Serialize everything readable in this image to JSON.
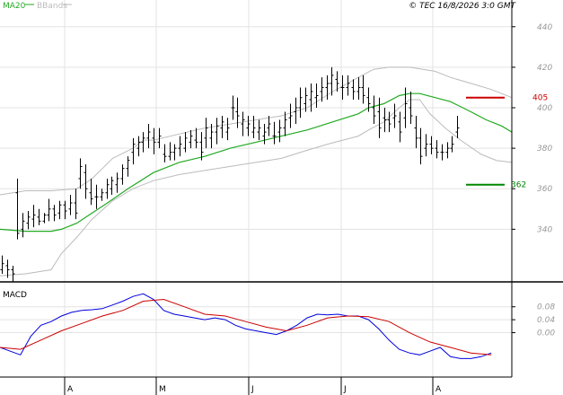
{
  "legend": {
    "ma": "MA20",
    "bbands": "BBands",
    "copyright": "© TEC 16/8/2026 3:0 GMT"
  },
  "colors": {
    "price": "#000000",
    "ma": "#22aa22",
    "bbands": "#bbbbbb",
    "macd": "#0000dd",
    "signal": "#cc0000",
    "resistance": "#cc0000",
    "support": "#008800",
    "grid": "#e3e3e3"
  },
  "chart_data": [
    {
      "type": "ohlc",
      "title": "",
      "y_ticks": [
        340,
        360,
        380,
        400,
        420,
        440
      ],
      "ylim": [
        314,
        447
      ],
      "xlim": [
        0,
        100
      ],
      "x_ticks": [
        {
          "label": "A",
          "x": 0
        },
        {
          "label": "M",
          "x": 20
        },
        {
          "label": "J",
          "x": 40
        },
        {
          "label": "J",
          "x": 60
        },
        {
          "label": "A",
          "x": 80
        }
      ],
      "levels": [
        {
          "name": "resistance",
          "value": 405,
          "label": "405"
        },
        {
          "name": "support",
          "value": 362,
          "label": "362"
        }
      ],
      "price_ohlc": [
        [
          320,
          327,
          318,
          323
        ],
        [
          322,
          325,
          316,
          320
        ],
        [
          320,
          322,
          314,
          318
        ],
        [
          358,
          365,
          335,
          338
        ],
        [
          340,
          348,
          336,
          344
        ],
        [
          343,
          349,
          340,
          346
        ],
        [
          345,
          352,
          341,
          347
        ],
        [
          346,
          350,
          342,
          344
        ],
        [
          344,
          348,
          343,
          347
        ],
        [
          347,
          355,
          344,
          350
        ],
        [
          350,
          352,
          344,
          347
        ],
        [
          348,
          354,
          345,
          352
        ],
        [
          352,
          354,
          345,
          349
        ],
        [
          350,
          357,
          347,
          353
        ],
        [
          353,
          360,
          345,
          348
        ],
        [
          365,
          375,
          360,
          371
        ],
        [
          368,
          372,
          355,
          360
        ],
        [
          358,
          365,
          352,
          355
        ],
        [
          356,
          362,
          350,
          356
        ],
        [
          356,
          360,
          354,
          358
        ],
        [
          358,
          365,
          355,
          362
        ],
        [
          360,
          366,
          357,
          364
        ],
        [
          362,
          368,
          358,
          365
        ],
        [
          365,
          372,
          362,
          370
        ],
        [
          370,
          376,
          366,
          374
        ],
        [
          378,
          385,
          372,
          382
        ],
        [
          380,
          386,
          376,
          383
        ],
        [
          383,
          388,
          378,
          385
        ],
        [
          385,
          392,
          380,
          388
        ],
        [
          385,
          390,
          377,
          383
        ],
        [
          383,
          390,
          380,
          386
        ],
        [
          377,
          382,
          373,
          376
        ],
        [
          376,
          383,
          374,
          378
        ],
        [
          378,
          382,
          374,
          380
        ],
        [
          380,
          386,
          376,
          382
        ],
        [
          380,
          388,
          378,
          385
        ],
        [
          383,
          389,
          380,
          386
        ],
        [
          384,
          390,
          380,
          383
        ],
        [
          383,
          388,
          374,
          378
        ],
        [
          385,
          395,
          380,
          390
        ],
        [
          385,
          392,
          380,
          388
        ],
        [
          388,
          395,
          382,
          391
        ],
        [
          390,
          396,
          385,
          393
        ],
        [
          388,
          395,
          384,
          390
        ],
        [
          400,
          406,
          394,
          400
        ],
        [
          398,
          405,
          390,
          396
        ],
        [
          392,
          398,
          386,
          394
        ],
        [
          390,
          396,
          386,
          392
        ],
        [
          388,
          396,
          385,
          390
        ],
        [
          388,
          394,
          384,
          390
        ],
        [
          386,
          392,
          382,
          388
        ],
        [
          390,
          396,
          386,
          392
        ],
        [
          386,
          393,
          382,
          386
        ],
        [
          388,
          394,
          383,
          390
        ],
        [
          390,
          398,
          386,
          394
        ],
        [
          395,
          402,
          390,
          396
        ],
        [
          398,
          405,
          392,
          400
        ],
        [
          400,
          410,
          395,
          405
        ],
        [
          402,
          410,
          398,
          406
        ],
        [
          404,
          412,
          398,
          408
        ],
        [
          405,
          412,
          400,
          406
        ],
        [
          408,
          415,
          403,
          410
        ],
        [
          410,
          416,
          404,
          412
        ],
        [
          412,
          420,
          406,
          416
        ],
        [
          414,
          418,
          408,
          412
        ],
        [
          410,
          416,
          404,
          410
        ],
        [
          410,
          416,
          406,
          412
        ],
        [
          410,
          414,
          404,
          408
        ],
        [
          408,
          415,
          404,
          410
        ],
        [
          410,
          416,
          402,
          406
        ],
        [
          405,
          410,
          398,
          402
        ],
        [
          400,
          406,
          392,
          396
        ],
        [
          398,
          405,
          385,
          390
        ],
        [
          395,
          400,
          388,
          394
        ],
        [
          394,
          398,
          388,
          392
        ],
        [
          395,
          402,
          390,
          396
        ],
        [
          393,
          398,
          383,
          388
        ],
        [
          395,
          410,
          390,
          402
        ],
        [
          400,
          408,
          392,
          396
        ],
        [
          390,
          396,
          380,
          385
        ],
        [
          385,
          390,
          372,
          376
        ],
        [
          380,
          387,
          376,
          382
        ],
        [
          382,
          386,
          377,
          380
        ],
        [
          380,
          384,
          375,
          378
        ],
        [
          378,
          382,
          374,
          378
        ],
        [
          378,
          383,
          375,
          380
        ],
        [
          380,
          386,
          378,
          382
        ],
        [
          388,
          396,
          385,
          390
        ]
      ],
      "ma20": [
        [
          0,
          340
        ],
        [
          5,
          339
        ],
        [
          10,
          339
        ],
        [
          12,
          340
        ],
        [
          15,
          343
        ],
        [
          18,
          348
        ],
        [
          21,
          353
        ],
        [
          25,
          360
        ],
        [
          30,
          368
        ],
        [
          35,
          373
        ],
        [
          40,
          376
        ],
        [
          45,
          380
        ],
        [
          50,
          383
        ],
        [
          55,
          386
        ],
        [
          60,
          389
        ],
        [
          65,
          393
        ],
        [
          70,
          397
        ],
        [
          72,
          400
        ],
        [
          75,
          402
        ],
        [
          78,
          406
        ],
        [
          80,
          407
        ],
        [
          82,
          407
        ],
        [
          85,
          405
        ],
        [
          88,
          403
        ],
        [
          92,
          398
        ],
        [
          95,
          394
        ],
        [
          98,
          391
        ],
        [
          100,
          388
        ]
      ],
      "bb_upper": [
        [
          0,
          357
        ],
        [
          5,
          359
        ],
        [
          10,
          359
        ],
        [
          15,
          360
        ],
        [
          18,
          365
        ],
        [
          20,
          370
        ],
        [
          22,
          375
        ],
        [
          26,
          380
        ],
        [
          28,
          384
        ],
        [
          30,
          384
        ],
        [
          35,
          387
        ],
        [
          40,
          390
        ],
        [
          45,
          392
        ],
        [
          50,
          394
        ],
        [
          55,
          396
        ],
        [
          60,
          400
        ],
        [
          65,
          408
        ],
        [
          70,
          415
        ],
        [
          73,
          419
        ],
        [
          76,
          420
        ],
        [
          80,
          420
        ],
        [
          85,
          418
        ],
        [
          88,
          415
        ],
        [
          92,
          412
        ],
        [
          96,
          409
        ],
        [
          100,
          405
        ]
      ],
      "bb_lower": [
        [
          0,
          317
        ],
        [
          5,
          318
        ],
        [
          10,
          320
        ],
        [
          12,
          328
        ],
        [
          15,
          336
        ],
        [
          18,
          345
        ],
        [
          22,
          354
        ],
        [
          26,
          360
        ],
        [
          30,
          364
        ],
        [
          35,
          367
        ],
        [
          40,
          369
        ],
        [
          45,
          371
        ],
        [
          50,
          373
        ],
        [
          55,
          375
        ],
        [
          60,
          379
        ],
        [
          64,
          382
        ],
        [
          70,
          386
        ],
        [
          72,
          389
        ],
        [
          75,
          393
        ],
        [
          78,
          400
        ],
        [
          80,
          404
        ],
        [
          82,
          404
        ],
        [
          84,
          397
        ],
        [
          87,
          390
        ],
        [
          90,
          384
        ],
        [
          94,
          377
        ],
        [
          97,
          374
        ],
        [
          100,
          373
        ]
      ]
    },
    {
      "type": "line",
      "title": "MACD",
      "y_ticks": [
        "0.08",
        "0.04",
        "0.00"
      ],
      "ylim": [
        -1.2,
        1.3
      ],
      "series": [
        {
          "name": "",
          "color_key": "macd",
          "values": [
            [
              0,
              -0.4
            ],
            [
              2,
              -0.5
            ],
            [
              4,
              -0.6
            ],
            [
              6,
              -0.1
            ],
            [
              8,
              0.2
            ],
            [
              10,
              0.3
            ],
            [
              12,
              0.45
            ],
            [
              14,
              0.55
            ],
            [
              16,
              0.6
            ],
            [
              18,
              0.62
            ],
            [
              20,
              0.65
            ],
            [
              22,
              0.75
            ],
            [
              24,
              0.85
            ],
            [
              26,
              0.98
            ],
            [
              28,
              1.05
            ],
            [
              30,
              0.9
            ],
            [
              32,
              0.6
            ],
            [
              34,
              0.5
            ],
            [
              36,
              0.45
            ],
            [
              38,
              0.4
            ],
            [
              40,
              0.35
            ],
            [
              42,
              0.4
            ],
            [
              44,
              0.35
            ],
            [
              46,
              0.2
            ],
            [
              48,
              0.1
            ],
            [
              50,
              0.05
            ],
            [
              52,
              0.0
            ],
            [
              54,
              -0.05
            ],
            [
              56,
              0.05
            ],
            [
              58,
              0.2
            ],
            [
              60,
              0.4
            ],
            [
              62,
              0.5
            ],
            [
              64,
              0.48
            ],
            [
              66,
              0.5
            ],
            [
              68,
              0.45
            ],
            [
              70,
              0.45
            ],
            [
              72,
              0.35
            ],
            [
              74,
              0.1
            ],
            [
              76,
              -0.2
            ],
            [
              78,
              -0.45
            ],
            [
              80,
              -0.55
            ],
            [
              82,
              -0.6
            ],
            [
              84,
              -0.5
            ],
            [
              86,
              -0.4
            ],
            [
              88,
              -0.65
            ],
            [
              90,
              -0.7
            ],
            [
              92,
              -0.7
            ],
            [
              94,
              -0.65
            ],
            [
              96,
              -0.55
            ]
          ]
        },
        {
          "name": "",
          "color_key": "signal",
          "values": [
            [
              0,
              -0.4
            ],
            [
              4,
              -0.45
            ],
            [
              8,
              -0.2
            ],
            [
              12,
              0.05
            ],
            [
              16,
              0.25
            ],
            [
              20,
              0.45
            ],
            [
              24,
              0.6
            ],
            [
              28,
              0.85
            ],
            [
              32,
              0.9
            ],
            [
              36,
              0.7
            ],
            [
              40,
              0.5
            ],
            [
              44,
              0.45
            ],
            [
              48,
              0.3
            ],
            [
              52,
              0.15
            ],
            [
              56,
              0.05
            ],
            [
              60,
              0.2
            ],
            [
              64,
              0.4
            ],
            [
              68,
              0.45
            ],
            [
              72,
              0.43
            ],
            [
              76,
              0.3
            ],
            [
              80,
              0.0
            ],
            [
              84,
              -0.25
            ],
            [
              88,
              -0.4
            ],
            [
              92,
              -0.55
            ],
            [
              96,
              -0.6
            ]
          ]
        }
      ]
    }
  ]
}
